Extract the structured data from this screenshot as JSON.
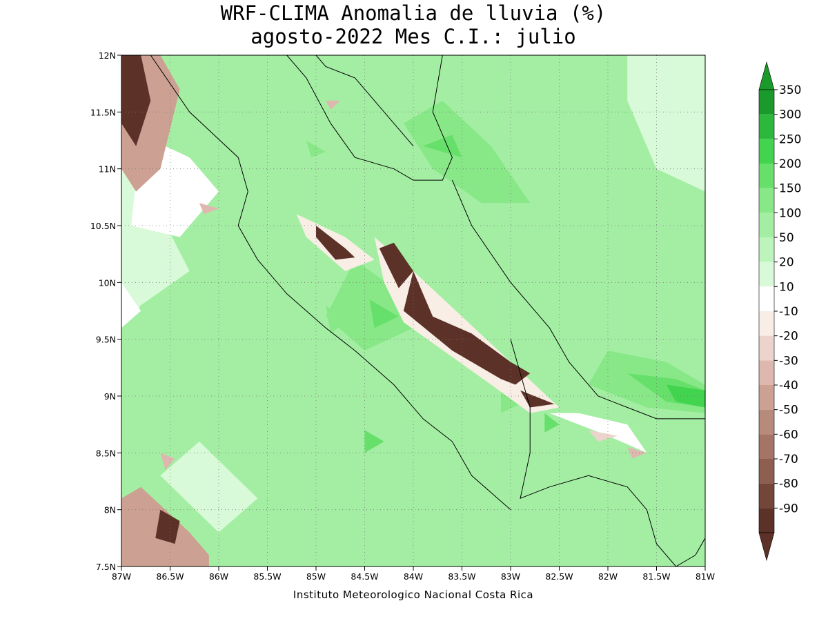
{
  "title_line1": "WRF-CLIMA Anomalia de lluvia (%)",
  "title_line2": "agosto-2022 Mes C.I.: julio",
  "credit": "Instituto Meteorologico Nacional Costa Rica",
  "map": {
    "lon_range": [
      -87,
      -81
    ],
    "lat_range": [
      7.5,
      12
    ],
    "lon_ticks": [
      {
        "v": -87,
        "label": "87W"
      },
      {
        "v": -86.5,
        "label": "86.5W"
      },
      {
        "v": -86,
        "label": "86W"
      },
      {
        "v": -85.5,
        "label": "85.5W"
      },
      {
        "v": -85,
        "label": "85W"
      },
      {
        "v": -84.5,
        "label": "84.5W"
      },
      {
        "v": -84,
        "label": "84W"
      },
      {
        "v": -83.5,
        "label": "83.5W"
      },
      {
        "v": -83,
        "label": "83W"
      },
      {
        "v": -82.5,
        "label": "82.5W"
      },
      {
        "v": -82,
        "label": "82W"
      },
      {
        "v": -81.5,
        "label": "81.5W"
      },
      {
        "v": -81,
        "label": "81W"
      }
    ],
    "lat_ticks": [
      {
        "v": 12,
        "label": "12N"
      },
      {
        "v": 11.5,
        "label": "11.5N"
      },
      {
        "v": 11,
        "label": "11N"
      },
      {
        "v": 10.5,
        "label": "10.5N"
      },
      {
        "v": 10,
        "label": "10N"
      },
      {
        "v": 9.5,
        "label": "9.5N"
      },
      {
        "v": 9,
        "label": "9N"
      },
      {
        "v": 8.5,
        "label": "8.5N"
      },
      {
        "v": 8,
        "label": "8N"
      },
      {
        "v": 7.5,
        "label": "7.5N"
      }
    ],
    "grid": "dotted",
    "background_color": "#a4eea4",
    "anomaly_regions": [
      {
        "level": 20,
        "points": [
          [
            -87,
            11.2
          ],
          [
            -86.6,
            10.6
          ],
          [
            -86.3,
            10.1
          ],
          [
            -86.8,
            9.8
          ],
          [
            -87,
            9.6
          ]
        ]
      },
      {
        "level": 20,
        "points": [
          [
            -81.8,
            12
          ],
          [
            -81,
            12
          ],
          [
            -81,
            10.8
          ],
          [
            -81.5,
            11.0
          ],
          [
            -81.8,
            11.6
          ]
        ]
      },
      {
        "level": 20,
        "points": [
          [
            -86.6,
            8.3
          ],
          [
            -86.2,
            8.6
          ],
          [
            -85.6,
            8.1
          ],
          [
            -86.0,
            7.8
          ]
        ]
      },
      {
        "level": 10,
        "points": [
          [
            -87,
            10.0
          ],
          [
            -86.8,
            9.75
          ],
          [
            -87,
            9.6
          ]
        ]
      },
      {
        "level": 10,
        "points": [
          [
            -86.8,
            11.3
          ],
          [
            -86.3,
            11.1
          ],
          [
            -86.0,
            10.8
          ],
          [
            -86.4,
            10.4
          ],
          [
            -86.9,
            10.5
          ]
        ]
      },
      {
        "level": 10,
        "points": [
          [
            -82.6,
            8.85
          ],
          [
            -82.0,
            8.65
          ],
          [
            -81.6,
            8.5
          ],
          [
            -81.8,
            8.75
          ],
          [
            -82.3,
            8.85
          ]
        ]
      },
      {
        "level": 100,
        "points": [
          [
            -85.3,
            11.4
          ],
          [
            -84.9,
            11.2
          ],
          [
            -85.2,
            11.05
          ],
          [
            -85.5,
            11.2
          ]
        ]
      },
      {
        "level": 150,
        "points": [
          [
            -85.1,
            11.25
          ],
          [
            -84.9,
            11.15
          ],
          [
            -85.05,
            11.1
          ]
        ]
      },
      {
        "level": 100,
        "points": [
          [
            -85.0,
            9.7
          ],
          [
            -84.6,
            9.5
          ],
          [
            -84.8,
            9.2
          ],
          [
            -85.3,
            9.4
          ]
        ]
      },
      {
        "level": 100,
        "points": [
          [
            -86.3,
            9.3
          ],
          [
            -85.8,
            8.9
          ],
          [
            -85.3,
            9.2
          ],
          [
            -85.8,
            9.6
          ]
        ]
      },
      {
        "level": 150,
        "points": [
          [
            -84.9,
            9.8
          ],
          [
            -84.7,
            9.65
          ],
          [
            -84.85,
            9.55
          ]
        ]
      },
      {
        "level": 150,
        "points": [
          [
            -84.6,
            10.2
          ],
          [
            -84.2,
            9.95
          ],
          [
            -84.0,
            9.6
          ],
          [
            -84.5,
            9.4
          ],
          [
            -84.9,
            9.7
          ]
        ]
      },
      {
        "level": 200,
        "points": [
          [
            -84.45,
            9.85
          ],
          [
            -84.15,
            9.7
          ],
          [
            -84.4,
            9.6
          ]
        ]
      },
      {
        "level": 100,
        "points": [
          [
            -83.4,
            9.2
          ],
          [
            -82.8,
            8.9
          ],
          [
            -82.4,
            8.6
          ],
          [
            -82.9,
            8.4
          ],
          [
            -83.6,
            8.7
          ]
        ]
      },
      {
        "level": 150,
        "points": [
          [
            -83.1,
            9.1
          ],
          [
            -82.85,
            8.95
          ],
          [
            -83.1,
            8.85
          ]
        ]
      },
      {
        "level": 200,
        "points": [
          [
            -82.65,
            8.85
          ],
          [
            -82.5,
            8.75
          ],
          [
            -82.65,
            8.68
          ]
        ]
      },
      {
        "level": 100,
        "points": [
          [
            -84.3,
            11.5
          ],
          [
            -83.6,
            11.8
          ],
          [
            -83.0,
            11.3
          ],
          [
            -82.2,
            10.5
          ],
          [
            -82.2,
            9.6
          ],
          [
            -81.5,
            9.1
          ],
          [
            -81,
            9.2
          ],
          [
            -81,
            8.8
          ],
          [
            -81.7,
            8.8
          ],
          [
            -82.4,
            9.2
          ],
          [
            -82.8,
            10.0
          ],
          [
            -83.4,
            10.6
          ],
          [
            -84.0,
            11.0
          ]
        ]
      },
      {
        "level": 150,
        "points": [
          [
            -84.1,
            11.4
          ],
          [
            -83.7,
            11.6
          ],
          [
            -83.2,
            11.2
          ],
          [
            -82.8,
            10.7
          ],
          [
            -83.3,
            10.7
          ],
          [
            -83.8,
            11.0
          ]
        ]
      },
      {
        "level": 200,
        "points": [
          [
            -83.9,
            11.2
          ],
          [
            -83.6,
            11.3
          ],
          [
            -83.5,
            11.1
          ]
        ]
      },
      {
        "level": 150,
        "points": [
          [
            -82.0,
            9.4
          ],
          [
            -81.4,
            9.3
          ],
          [
            -81,
            9.1
          ],
          [
            -81,
            8.85
          ],
          [
            -81.6,
            8.9
          ],
          [
            -82.2,
            9.1
          ]
        ]
      },
      {
        "level": 200,
        "points": [
          [
            -81.8,
            9.2
          ],
          [
            -81.3,
            9.15
          ],
          [
            -81,
            9.05
          ],
          [
            -81,
            8.9
          ],
          [
            -81.4,
            8.95
          ]
        ]
      },
      {
        "level": 250,
        "points": [
          [
            -81.4,
            9.1
          ],
          [
            -81,
            9.05
          ],
          [
            -81,
            8.9
          ],
          [
            -81.3,
            8.95
          ]
        ]
      },
      {
        "level": 200,
        "points": [
          [
            -84.5,
            8.7
          ],
          [
            -84.3,
            8.6
          ],
          [
            -84.5,
            8.5
          ]
        ]
      },
      {
        "level": -10,
        "points": [
          [
            -85.2,
            10.6
          ],
          [
            -84.7,
            10.4
          ],
          [
            -84.4,
            10.2
          ],
          [
            -84.7,
            10.1
          ],
          [
            -85.1,
            10.4
          ]
        ]
      },
      {
        "level": -90,
        "points": [
          [
            -85.0,
            10.5
          ],
          [
            -84.7,
            10.3
          ],
          [
            -84.6,
            10.22
          ],
          [
            -84.8,
            10.2
          ],
          [
            -85.0,
            10.4
          ]
        ]
      },
      {
        "level": -10,
        "points": [
          [
            -84.4,
            10.4
          ],
          [
            -84.0,
            10.1
          ],
          [
            -83.0,
            9.3
          ],
          [
            -82.5,
            8.9
          ],
          [
            -82.8,
            8.85
          ],
          [
            -83.2,
            9.1
          ],
          [
            -84.1,
            9.65
          ],
          [
            -84.3,
            10.0
          ]
        ]
      },
      {
        "level": -90,
        "points": [
          [
            -84.35,
            10.3
          ],
          [
            -84.2,
            10.35
          ],
          [
            -84.0,
            10.1
          ],
          [
            -84.15,
            9.95
          ]
        ]
      },
      {
        "level": -90,
        "points": [
          [
            -84.0,
            10.1
          ],
          [
            -83.8,
            9.7
          ],
          [
            -83.4,
            9.55
          ],
          [
            -83.0,
            9.3
          ],
          [
            -82.8,
            9.2
          ],
          [
            -82.95,
            9.1
          ],
          [
            -83.1,
            9.15
          ],
          [
            -83.6,
            9.4
          ],
          [
            -84.1,
            9.75
          ]
        ]
      },
      {
        "level": -90,
        "points": [
          [
            -82.9,
            9.05
          ],
          [
            -82.55,
            8.93
          ],
          [
            -82.8,
            8.9
          ]
        ]
      },
      {
        "level": -40,
        "points": [
          [
            -87,
            12
          ],
          [
            -86.6,
            12
          ],
          [
            -86.4,
            11.7
          ],
          [
            -86.6,
            11.0
          ],
          [
            -86.85,
            10.8
          ],
          [
            -87,
            11.0
          ]
        ]
      },
      {
        "level": -90,
        "points": [
          [
            -87,
            12
          ],
          [
            -86.8,
            12
          ],
          [
            -86.7,
            11.6
          ],
          [
            -86.85,
            11.2
          ],
          [
            -87,
            11.4
          ]
        ]
      },
      {
        "level": -40,
        "points": [
          [
            -87,
            8.1
          ],
          [
            -86.8,
            8.2
          ],
          [
            -86.3,
            7.8
          ],
          [
            -86.1,
            7.6
          ],
          [
            -86.1,
            7.5
          ],
          [
            -87,
            7.5
          ]
        ]
      },
      {
        "level": -90,
        "points": [
          [
            -86.6,
            8.0
          ],
          [
            -86.4,
            7.9
          ],
          [
            -86.45,
            7.7
          ],
          [
            -86.65,
            7.75
          ]
        ]
      },
      {
        "level": -30,
        "points": [
          [
            -86.6,
            8.5
          ],
          [
            -86.45,
            8.45
          ],
          [
            -86.55,
            8.35
          ]
        ]
      },
      {
        "level": -30,
        "points": [
          [
            -86.2,
            10.7
          ],
          [
            -86.0,
            10.65
          ],
          [
            -86.15,
            10.6
          ]
        ]
      },
      {
        "level": -30,
        "points": [
          [
            -84.9,
            11.6
          ],
          [
            -84.75,
            11.6
          ],
          [
            -84.85,
            11.52
          ]
        ]
      },
      {
        "level": -30,
        "points": [
          [
            -81.8,
            8.55
          ],
          [
            -81.6,
            8.5
          ],
          [
            -81.75,
            8.45
          ]
        ]
      },
      {
        "level": -20,
        "points": [
          [
            -82.2,
            8.7
          ],
          [
            -81.9,
            8.65
          ],
          [
            -82.1,
            8.6
          ]
        ]
      }
    ],
    "coastlines": [
      {
        "points": [
          [
            -86.7,
            12
          ],
          [
            -86.3,
            11.5
          ],
          [
            -85.8,
            11.1
          ],
          [
            -85.7,
            10.8
          ],
          [
            -85.8,
            10.5
          ],
          [
            -85.6,
            10.2
          ],
          [
            -85.3,
            9.9
          ],
          [
            -84.9,
            9.6
          ],
          [
            -84.6,
            9.4
          ],
          [
            -84.2,
            9.1
          ],
          [
            -83.9,
            8.8
          ],
          [
            -83.6,
            8.6
          ],
          [
            -83.4,
            8.3
          ],
          [
            -83.0,
            8.0
          ]
        ]
      },
      {
        "points": [
          [
            -85.3,
            12
          ],
          [
            -85.1,
            11.8
          ],
          [
            -84.85,
            11.4
          ],
          [
            -84.6,
            11.1
          ],
          [
            -84.2,
            11.0
          ],
          [
            -84.0,
            10.9
          ],
          [
            -83.7,
            10.9
          ],
          [
            -83.6,
            11.1
          ],
          [
            -83.8,
            11.5
          ],
          [
            -83.7,
            12
          ]
        ]
      },
      {
        "points": [
          [
            -83.6,
            10.9
          ],
          [
            -83.4,
            10.5
          ],
          [
            -83.0,
            10.0
          ],
          [
            -82.6,
            9.6
          ],
          [
            -82.4,
            9.3
          ],
          [
            -82.1,
            9.0
          ],
          [
            -81.8,
            8.9
          ],
          [
            -81.5,
            8.8
          ],
          [
            -81.0,
            8.8
          ]
        ]
      },
      {
        "points": [
          [
            -83.0,
            9.5
          ],
          [
            -82.9,
            9.2
          ],
          [
            -82.8,
            8.9
          ],
          [
            -82.8,
            8.5
          ],
          [
            -82.9,
            8.1
          ],
          [
            -82.6,
            8.2
          ],
          [
            -82.2,
            8.3
          ],
          [
            -81.8,
            8.2
          ],
          [
            -81.6,
            8.0
          ],
          [
            -81.5,
            7.7
          ],
          [
            -81.3,
            7.5
          ]
        ]
      },
      {
        "points": [
          [
            -85.0,
            12
          ],
          [
            -84.9,
            11.9
          ],
          [
            -84.6,
            11.8
          ],
          [
            -84.3,
            11.5
          ],
          [
            -84.0,
            11.2
          ]
        ]
      },
      {
        "points": [
          [
            -81.3,
            7.5
          ],
          [
            -81.1,
            7.6
          ],
          [
            -81.0,
            7.75
          ]
        ]
      }
    ]
  },
  "colorbar": {
    "labels": [
      "350",
      "300",
      "250",
      "200",
      "150",
      "100",
      "50",
      "20",
      "10",
      "-10",
      "-20",
      "-30",
      "-40",
      "-50",
      "-60",
      "-70",
      "-80",
      "-90"
    ],
    "colors": [
      "#1a9a2a",
      "#2cb83c",
      "#42d44e",
      "#66e06a",
      "#88e888",
      "#a4eea4",
      "#bcf4bc",
      "#d8fad8",
      "#ffffff",
      "#f8eee6",
      "#ecd4cc",
      "#deb8ae",
      "#cca092",
      "#b88a7c",
      "#a67466",
      "#8e5e50",
      "#74463a",
      "#5c3228"
    ]
  }
}
